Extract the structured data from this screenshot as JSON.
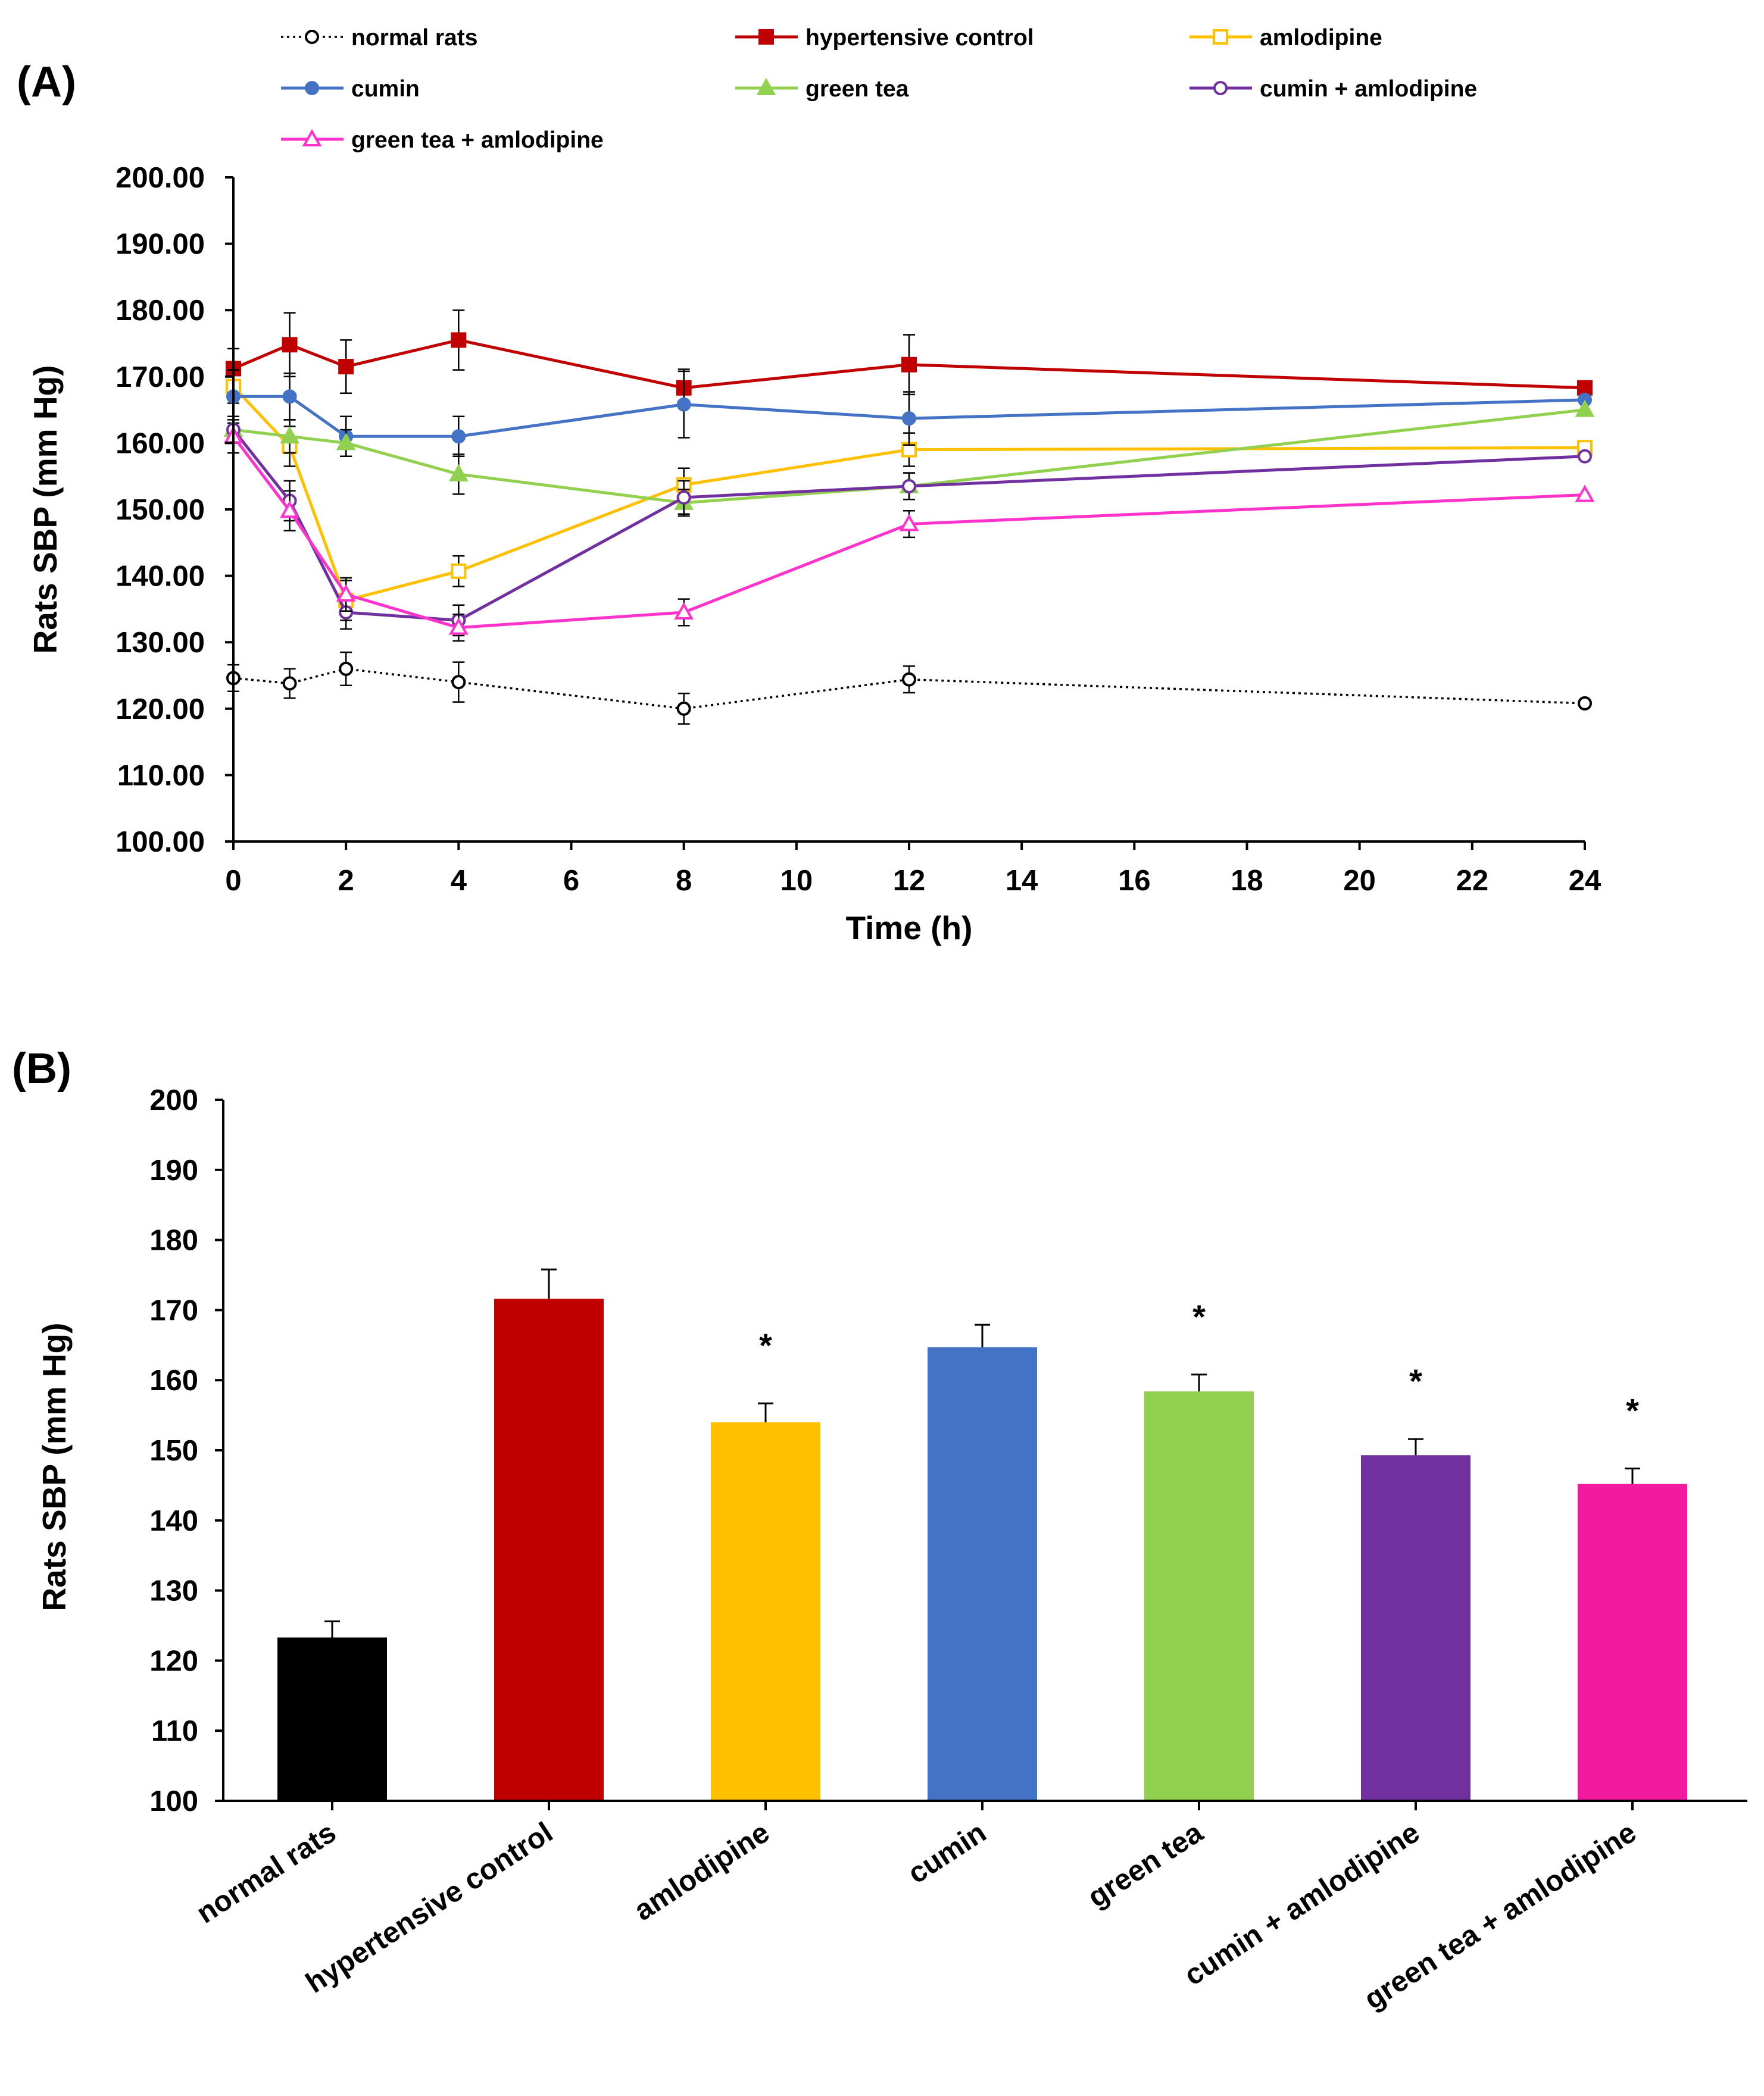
{
  "panels": {
    "a_label": "(A)",
    "b_label": "(B)"
  },
  "chart_data": [
    {
      "type": "line",
      "title": "",
      "xlabel": "Time (h)",
      "ylabel": "Rats SBP (mm Hg)",
      "xlim": [
        0,
        24
      ],
      "ylim": [
        100,
        200
      ],
      "x_ticks": [
        "0",
        "2",
        "4",
        "6",
        "8",
        "10",
        "12",
        "14",
        "16",
        "18",
        "20",
        "22",
        "24"
      ],
      "y_ticks": [
        "100.00",
        "110.00",
        "120.00",
        "130.00",
        "140.00",
        "150.00",
        "160.00",
        "170.00",
        "180.00",
        "190.00",
        "200.00"
      ],
      "grid": false,
      "legend_position": "top",
      "x": [
        0,
        1,
        2,
        4,
        8,
        12,
        24
      ],
      "series": [
        {
          "name": "normal rats",
          "color": "#000000",
          "marker": "circle-open",
          "dashed": true,
          "values": [
            124.6,
            123.8,
            126.0,
            124.0,
            120.0,
            124.4,
            120.8
          ],
          "errors": [
            2.0,
            2.2,
            2.5,
            3.0,
            2.3,
            2.0,
            0
          ]
        },
        {
          "name": "hypertensive control",
          "color": "#c00000",
          "marker": "square-filled",
          "dashed": false,
          "values": [
            171.2,
            174.8,
            171.5,
            175.5,
            168.3,
            171.8,
            168.3
          ],
          "errors": [
            3.0,
            4.8,
            4.0,
            4.5,
            2.8,
            4.5,
            0
          ]
        },
        {
          "name": "amlodipine",
          "color": "#ffc000",
          "marker": "square-open",
          "dashed": false,
          "values": [
            168.5,
            159.5,
            136.3,
            140.7,
            153.7,
            159.0,
            159.3
          ],
          "errors": [
            2.5,
            3.0,
            3.0,
            2.3,
            2.5,
            2.5,
            0
          ]
        },
        {
          "name": "cumin",
          "color": "#4472c4",
          "marker": "circle-filled",
          "dashed": false,
          "values": [
            167.0,
            167.0,
            161.0,
            161.0,
            165.8,
            163.7,
            166.5
          ],
          "errors": [
            4.0,
            3.5,
            3.0,
            3.0,
            5.0,
            4.0,
            0
          ]
        },
        {
          "name": "green tea",
          "color": "#92d050",
          "marker": "triangle-filled",
          "dashed": false,
          "values": [
            162.0,
            161.0,
            160.0,
            155.3,
            151.0,
            153.5,
            165.0
          ],
          "errors": [
            2.0,
            2.5,
            2.0,
            3.0,
            2.0,
            2.0,
            0
          ]
        },
        {
          "name": "cumin + amlodipine",
          "color": "#7030a0",
          "marker": "circle-open",
          "dashed": false,
          "values": [
            162.0,
            151.3,
            134.5,
            133.3,
            151.8,
            153.5,
            158.0
          ],
          "errors": [
            2.0,
            3.0,
            2.5,
            2.3,
            2.5,
            2.0,
            0
          ]
        },
        {
          "name": "green tea + amlodipine",
          "color": "#ff33cc",
          "marker": "triangle-open",
          "dashed": false,
          "values": [
            161.0,
            149.8,
            137.2,
            132.2,
            134.5,
            147.8,
            152.2
          ],
          "errors": [
            2.5,
            3.0,
            2.5,
            2.0,
            2.0,
            2.0,
            0
          ]
        }
      ]
    },
    {
      "type": "bar",
      "title": "",
      "xlabel": "",
      "ylabel": "Rats SBP (mm Hg)",
      "ylim": [
        100,
        200
      ],
      "y_ticks": [
        "100",
        "110",
        "120",
        "130",
        "140",
        "150",
        "160",
        "170",
        "180",
        "190",
        "200"
      ],
      "grid": false,
      "categories": [
        "normal rats",
        "hypertensive control",
        "amlodipine",
        "cumin",
        "green tea",
        "cumin + amlodipine",
        "green tea + amlodipine"
      ],
      "values": [
        123.3,
        171.6,
        154.0,
        164.7,
        158.4,
        149.3,
        145.2
      ],
      "errors": [
        2.3,
        4.2,
        2.7,
        3.2,
        2.4,
        2.3,
        2.2
      ],
      "colors": [
        "#000000",
        "#c00000",
        "#ffc000",
        "#4472c4",
        "#92d050",
        "#7030a0",
        "#f21ba0"
      ],
      "annotations": [
        "",
        "",
        "*",
        "",
        "*",
        "*",
        "*"
      ]
    }
  ]
}
